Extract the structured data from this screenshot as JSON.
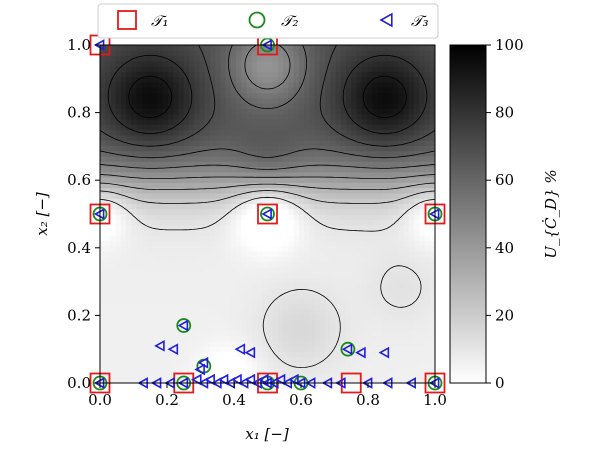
{
  "chart_data": {
    "type": "heatmap",
    "xlabel": "x₁ [−]",
    "ylabel": "x₂ [−]",
    "xlim": [
      0.0,
      1.0
    ],
    "ylim": [
      0.0,
      1.0
    ],
    "x_ticks": [
      "0.0",
      "0.2",
      "0.4",
      "0.6",
      "0.8",
      "1.0"
    ],
    "y_ticks": [
      "0.0",
      "0.2",
      "0.4",
      "0.6",
      "0.8",
      "1.0"
    ],
    "colorbar": {
      "label": "U_{Ċ_D} %",
      "range": [
        0,
        100
      ],
      "ticks": [
        "0",
        "20",
        "40",
        "60",
        "80",
        "100"
      ],
      "cmap": "greys"
    },
    "legend": {
      "placement": "top",
      "entries": [
        {
          "name": "𝒯₁",
          "marker": "square",
          "color": "#e31a1c"
        },
        {
          "name": "𝒯₂",
          "marker": "circle",
          "color": "#1b8a1b"
        },
        {
          "name": "𝒯₃",
          "marker": "triangle-left",
          "color": "#1f1fdd"
        }
      ]
    },
    "series": [
      {
        "name": "𝒯₁",
        "points": [
          [
            0.0,
            1.0
          ],
          [
            0.5,
            1.0
          ],
          [
            0.0,
            0.5
          ],
          [
            0.5,
            0.5
          ],
          [
            1.0,
            0.5
          ],
          [
            0.0,
            0.0
          ],
          [
            0.25,
            0.0
          ],
          [
            0.5,
            0.0
          ],
          [
            0.75,
            0.0
          ],
          [
            1.0,
            0.0
          ]
        ]
      },
      {
        "name": "𝒯₂",
        "points": [
          [
            0.5,
            1.0
          ],
          [
            0.0,
            0.5
          ],
          [
            0.5,
            0.5
          ],
          [
            1.0,
            0.5
          ],
          [
            0.25,
            0.17
          ],
          [
            0.74,
            0.1
          ],
          [
            0.31,
            0.05
          ],
          [
            0.0,
            0.0
          ],
          [
            0.25,
            0.0
          ],
          [
            0.5,
            0.0
          ],
          [
            0.6,
            0.0
          ],
          [
            1.0,
            0.0
          ]
        ]
      },
      {
        "name": "𝒯₃",
        "points": [
          [
            0.0,
            1.0
          ],
          [
            0.5,
            1.0
          ],
          [
            0.0,
            0.5
          ],
          [
            0.5,
            0.5
          ],
          [
            1.0,
            0.5
          ],
          [
            0.25,
            0.17
          ],
          [
            0.74,
            0.1
          ],
          [
            0.18,
            0.11
          ],
          [
            0.22,
            0.1
          ],
          [
            0.42,
            0.1
          ],
          [
            0.45,
            0.09
          ],
          [
            0.78,
            0.09
          ],
          [
            0.85,
            0.09
          ],
          [
            0.31,
            0.06
          ],
          [
            0.3,
            0.04
          ],
          [
            0.0,
            0.0
          ],
          [
            0.25,
            0.0
          ],
          [
            0.5,
            0.0
          ],
          [
            0.6,
            0.0
          ],
          [
            1.0,
            0.0
          ],
          [
            0.13,
            0.0
          ],
          [
            0.17,
            0.0
          ],
          [
            0.21,
            0.0
          ],
          [
            0.29,
            0.01
          ],
          [
            0.31,
            0.0
          ],
          [
            0.33,
            0.01
          ],
          [
            0.35,
            0.0
          ],
          [
            0.37,
            0.01
          ],
          [
            0.39,
            0.0
          ],
          [
            0.41,
            0.01
          ],
          [
            0.43,
            0.0
          ],
          [
            0.45,
            0.01
          ],
          [
            0.47,
            0.0
          ],
          [
            0.49,
            0.01
          ],
          [
            0.52,
            0.0
          ],
          [
            0.54,
            0.01
          ],
          [
            0.56,
            0.0
          ],
          [
            0.58,
            0.01
          ],
          [
            0.63,
            0.0
          ],
          [
            0.68,
            0.0
          ],
          [
            0.72,
            0.0
          ],
          [
            0.8,
            0.0
          ],
          [
            0.86,
            0.0
          ],
          [
            0.93,
            0.0
          ]
        ]
      }
    ]
  }
}
